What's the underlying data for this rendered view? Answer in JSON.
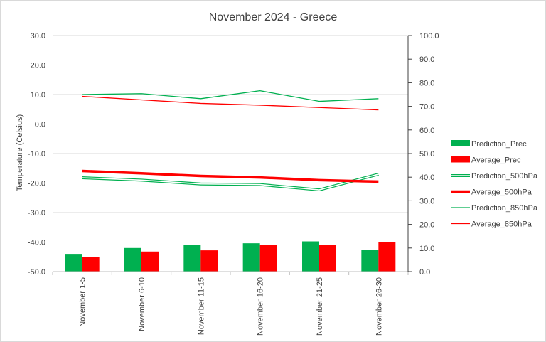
{
  "chart_data": {
    "type": "bar",
    "title": "November 2024 - Greece",
    "ylabel": "Temperature (Celsius)",
    "y2label": "",
    "categories": [
      "November 1-5",
      "November 6-10",
      "November 11-15",
      "November 16-20",
      "November 21-25",
      "November 26-30"
    ],
    "y_left": {
      "range": [
        -50,
        30
      ],
      "ticks": [
        "30.0",
        "20.0",
        "10.0",
        "0.0",
        "-10.0",
        "-20.0",
        "-30.0",
        "-40.0",
        "-50.0"
      ],
      "tick_values": [
        30,
        20,
        10,
        0,
        -10,
        -20,
        -30,
        -40,
        -50
      ]
    },
    "y_right": {
      "range": [
        0,
        100
      ],
      "ticks": [
        "100.0",
        "90.0",
        "80.0",
        "70.0",
        "60.0",
        "50.0",
        "40.0",
        "30.0",
        "20.0",
        "10.0",
        "0.0"
      ],
      "tick_values": [
        100,
        90,
        80,
        70,
        60,
        50,
        40,
        30,
        20,
        10,
        0
      ]
    },
    "grid": true,
    "legend_position": "right",
    "series": [
      {
        "name": "Prediction_Prec",
        "kind": "bar",
        "axis": "right",
        "color": "#00b050",
        "values": [
          7.5,
          10.0,
          11.3,
          12.0,
          12.8,
          9.3
        ]
      },
      {
        "name": "Average_Prec",
        "kind": "bar",
        "axis": "right",
        "color": "#ff0000",
        "values": [
          6.3,
          8.5,
          9.0,
          11.3,
          11.3,
          12.5
        ]
      },
      {
        "name": "Prediction_500hPa",
        "kind": "line",
        "style": "double",
        "axis": "left",
        "color": "#00b050",
        "values": [
          -18.2,
          -19.0,
          -20.3,
          -20.5,
          -22.3,
          -17.0
        ]
      },
      {
        "name": "Average_500hPa",
        "kind": "line",
        "style": "thick",
        "axis": "left",
        "color": "#ff0000",
        "values": [
          -15.9,
          -16.7,
          -17.6,
          -18.1,
          -19.0,
          -19.5
        ]
      },
      {
        "name": "Prediction_850hPa",
        "kind": "line",
        "style": "thin",
        "axis": "left",
        "color": "#00b050",
        "values": [
          10.0,
          10.3,
          8.6,
          11.3,
          7.7,
          8.6
        ]
      },
      {
        "name": "Average_850hPa",
        "kind": "line",
        "style": "thin",
        "axis": "left",
        "color": "#ff0000",
        "values": [
          9.4,
          8.2,
          7.0,
          6.4,
          5.6,
          4.8
        ]
      }
    ]
  }
}
